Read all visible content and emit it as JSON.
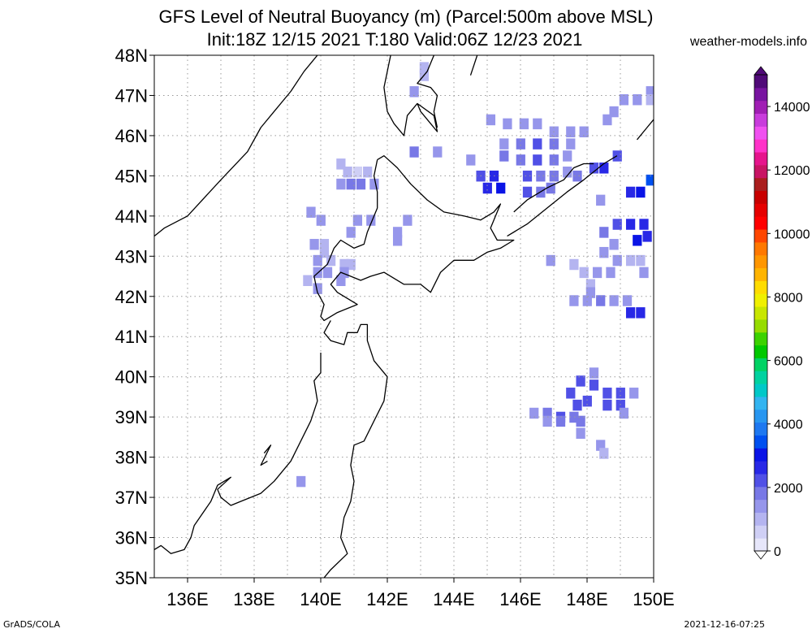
{
  "title_line1": "GFS Level of Neutral Buoyancy (m) (Parcel:500m above MSL)",
  "title_line2": "Init:18Z 12/15 2021 T:180 Valid:06Z 12/23 2021",
  "site": "weather-models.info",
  "footer_left": "GrADS/COLA",
  "footer_right": "2021-12-16-07:25",
  "map": {
    "lon_range": [
      135,
      150
    ],
    "lat_range": [
      35,
      48
    ],
    "lon_ticks": [
      "136E",
      "138E",
      "140E",
      "142E",
      "144E",
      "146E",
      "148E",
      "150E"
    ],
    "lat_ticks": [
      "35N",
      "36N",
      "37N",
      "38N",
      "39N",
      "40N",
      "41N",
      "42N",
      "43N",
      "44N",
      "45N",
      "46N",
      "47N",
      "48N"
    ],
    "grid": "dotted"
  },
  "colorbar": {
    "labels": [
      "0",
      "2000",
      "4000",
      "6000",
      "8000",
      "10000",
      "12000",
      "14000"
    ],
    "colors": [
      "#e6e6fa",
      "#cfcff5",
      "#b4b4f0",
      "#9696eb",
      "#7878e6",
      "#5050e6",
      "#2828e6",
      "#0a14e6",
      "#0050f0",
      "#1e78f0",
      "#2896f0",
      "#32b4f0",
      "#00c8c8",
      "#00d2a0",
      "#00d264",
      "#00c800",
      "#3cd200",
      "#96dc00",
      "#c8e600",
      "#f0f000",
      "#ffdc00",
      "#ffb400",
      "#ff9600",
      "#ff7800",
      "#ff4600",
      "#ff0000",
      "#e60000",
      "#c80000",
      "#aa1e1e",
      "#c81464",
      "#e6148c",
      "#ff32c8",
      "#f050f0",
      "#c83cdc",
      "#a01eb4",
      "#7814a0",
      "#500a78"
    ]
  },
  "lnb_cells": [
    {
      "lon": 143.1,
      "lat": 47.7,
      "v": 1200
    },
    {
      "lon": 143.1,
      "lat": 47.5,
      "v": 1200
    },
    {
      "lon": 142.8,
      "lat": 47.1,
      "v": 1300
    },
    {
      "lon": 142.8,
      "lat": 45.6,
      "v": 1700
    },
    {
      "lon": 140.6,
      "lat": 45.3,
      "v": 1200
    },
    {
      "lon": 140.8,
      "lat": 45.1,
      "v": 900
    },
    {
      "lon": 141.1,
      "lat": 45.1,
      "v": 700
    },
    {
      "lon": 141.4,
      "lat": 45.1,
      "v": 900
    },
    {
      "lon": 140.6,
      "lat": 44.8,
      "v": 1500
    },
    {
      "lon": 140.9,
      "lat": 44.8,
      "v": 1800
    },
    {
      "lon": 141.2,
      "lat": 44.8,
      "v": 1700
    },
    {
      "lon": 141.6,
      "lat": 44.8,
      "v": 1600
    },
    {
      "lon": 139.7,
      "lat": 44.1,
      "v": 1300
    },
    {
      "lon": 140.0,
      "lat": 43.9,
      "v": 1300
    },
    {
      "lon": 141.1,
      "lat": 43.9,
      "v": 1500
    },
    {
      "lon": 141.5,
      "lat": 43.9,
      "v": 1300
    },
    {
      "lon": 142.6,
      "lat": 43.9,
      "v": 1400
    },
    {
      "lon": 140.9,
      "lat": 43.6,
      "v": 1400
    },
    {
      "lon": 142.3,
      "lat": 43.6,
      "v": 1300
    },
    {
      "lon": 142.3,
      "lat": 43.4,
      "v": 1300
    },
    {
      "lon": 139.8,
      "lat": 43.3,
      "v": 1300
    },
    {
      "lon": 140.1,
      "lat": 43.1,
      "v": 1200
    },
    {
      "lon": 140.1,
      "lat": 43.3,
      "v": 1000
    },
    {
      "lon": 139.9,
      "lat": 42.9,
      "v": 1500
    },
    {
      "lon": 140.3,
      "lat": 42.9,
      "v": 1100
    },
    {
      "lon": 140.7,
      "lat": 42.8,
      "v": 1200
    },
    {
      "lon": 140.9,
      "lat": 42.8,
      "v": 1100
    },
    {
      "lon": 139.9,
      "lat": 42.6,
      "v": 1500
    },
    {
      "lon": 140.2,
      "lat": 42.6,
      "v": 1300
    },
    {
      "lon": 140.7,
      "lat": 42.6,
      "v": 1400
    },
    {
      "lon": 139.6,
      "lat": 42.4,
      "v": 1200
    },
    {
      "lon": 139.9,
      "lat": 42.2,
      "v": 1300
    },
    {
      "lon": 140.6,
      "lat": 42.4,
      "v": 1300
    },
    {
      "lon": 143.5,
      "lat": 45.6,
      "v": 1600
    },
    {
      "lon": 144.5,
      "lat": 45.4,
      "v": 1500
    },
    {
      "lon": 145.1,
      "lat": 46.4,
      "v": 1500
    },
    {
      "lon": 145.6,
      "lat": 46.3,
      "v": 1400
    },
    {
      "lon": 146.1,
      "lat": 46.3,
      "v": 1300
    },
    {
      "lon": 146.5,
      "lat": 46.3,
      "v": 1300
    },
    {
      "lon": 147.0,
      "lat": 46.1,
      "v": 1300
    },
    {
      "lon": 147.5,
      "lat": 46.1,
      "v": 1300
    },
    {
      "lon": 147.9,
      "lat": 46.1,
      "v": 1400
    },
    {
      "lon": 145.5,
      "lat": 45.8,
      "v": 1600
    },
    {
      "lon": 146.0,
      "lat": 45.8,
      "v": 1800
    },
    {
      "lon": 146.5,
      "lat": 45.8,
      "v": 2100
    },
    {
      "lon": 147.0,
      "lat": 45.8,
      "v": 1700
    },
    {
      "lon": 147.5,
      "lat": 45.8,
      "v": 1600
    },
    {
      "lon": 145.5,
      "lat": 45.5,
      "v": 1700
    },
    {
      "lon": 146.0,
      "lat": 45.4,
      "v": 2000
    },
    {
      "lon": 146.5,
      "lat": 45.4,
      "v": 2200
    },
    {
      "lon": 147.0,
      "lat": 45.4,
      "v": 1900
    },
    {
      "lon": 147.4,
      "lat": 45.5,
      "v": 1600
    },
    {
      "lon": 144.8,
      "lat": 45.0,
      "v": 2400
    },
    {
      "lon": 145.2,
      "lat": 45.0,
      "v": 2600
    },
    {
      "lon": 145.4,
      "lat": 44.7,
      "v": 3000
    },
    {
      "lon": 145.0,
      "lat": 44.7,
      "v": 2800
    },
    {
      "lon": 146.2,
      "lat": 45.0,
      "v": 2200
    },
    {
      "lon": 146.6,
      "lat": 45.0,
      "v": 2000
    },
    {
      "lon": 147.0,
      "lat": 45.0,
      "v": 1800
    },
    {
      "lon": 147.4,
      "lat": 45.1,
      "v": 1500
    },
    {
      "lon": 146.2,
      "lat": 44.6,
      "v": 2300
    },
    {
      "lon": 146.6,
      "lat": 44.6,
      "v": 2000
    },
    {
      "lon": 146.9,
      "lat": 44.7,
      "v": 1700
    },
    {
      "lon": 147.7,
      "lat": 45.0,
      "v": 2000
    },
    {
      "lon": 148.2,
      "lat": 45.2,
      "v": 2300
    },
    {
      "lon": 148.5,
      "lat": 45.2,
      "v": 2500
    },
    {
      "lon": 148.9,
      "lat": 45.5,
      "v": 2200
    },
    {
      "lon": 148.6,
      "lat": 46.4,
      "v": 1400
    },
    {
      "lon": 148.8,
      "lat": 46.6,
      "v": 1400
    },
    {
      "lon": 149.1,
      "lat": 46.9,
      "v": 1300
    },
    {
      "lon": 149.5,
      "lat": 46.9,
      "v": 1300
    },
    {
      "lon": 149.9,
      "lat": 47.1,
      "v": 1300
    },
    {
      "lon": 149.9,
      "lat": 46.9,
      "v": 1200
    },
    {
      "lon": 148.4,
      "lat": 44.4,
      "v": 1600
    },
    {
      "lon": 149.3,
      "lat": 44.6,
      "v": 2800
    },
    {
      "lon": 149.6,
      "lat": 44.6,
      "v": 3000
    },
    {
      "lon": 149.9,
      "lat": 44.9,
      "v": 3300
    },
    {
      "lon": 148.5,
      "lat": 43.6,
      "v": 1700
    },
    {
      "lon": 148.9,
      "lat": 43.8,
      "v": 2300
    },
    {
      "lon": 149.3,
      "lat": 43.8,
      "v": 2600
    },
    {
      "lon": 149.7,
      "lat": 43.8,
      "v": 2800
    },
    {
      "lon": 149.5,
      "lat": 43.4,
      "v": 3000
    },
    {
      "lon": 149.8,
      "lat": 43.5,
      "v": 2800
    },
    {
      "lon": 148.8,
      "lat": 43.3,
      "v": 1500
    },
    {
      "lon": 148.5,
      "lat": 43.1,
      "v": 1500
    },
    {
      "lon": 148.9,
      "lat": 42.9,
      "v": 1300
    },
    {
      "lon": 149.3,
      "lat": 42.9,
      "v": 1200
    },
    {
      "lon": 149.6,
      "lat": 42.9,
      "v": 1200
    },
    {
      "lon": 147.6,
      "lat": 42.8,
      "v": 1000
    },
    {
      "lon": 147.9,
      "lat": 42.6,
      "v": 1100
    },
    {
      "lon": 148.3,
      "lat": 42.6,
      "v": 1300
    },
    {
      "lon": 148.7,
      "lat": 42.6,
      "v": 1400
    },
    {
      "lon": 149.7,
      "lat": 42.6,
      "v": 1300
    },
    {
      "lon": 146.9,
      "lat": 42.9,
      "v": 1600
    },
    {
      "lon": 148.1,
      "lat": 42.3,
      "v": 1200
    },
    {
      "lon": 148.1,
      "lat": 42.1,
      "v": 1300
    },
    {
      "lon": 147.6,
      "lat": 41.9,
      "v": 1500
    },
    {
      "lon": 148.0,
      "lat": 41.9,
      "v": 1600
    },
    {
      "lon": 148.4,
      "lat": 41.9,
      "v": 1700
    },
    {
      "lon": 148.8,
      "lat": 41.9,
      "v": 1600
    },
    {
      "lon": 149.2,
      "lat": 41.9,
      "v": 1500
    },
    {
      "lon": 149.3,
      "lat": 41.6,
      "v": 2700
    },
    {
      "lon": 149.6,
      "lat": 41.6,
      "v": 2700
    },
    {
      "lon": 148.2,
      "lat": 40.1,
      "v": 1400
    },
    {
      "lon": 147.8,
      "lat": 39.9,
      "v": 2300
    },
    {
      "lon": 148.2,
      "lat": 39.8,
      "v": 2200
    },
    {
      "lon": 148.6,
      "lat": 39.6,
      "v": 2400
    },
    {
      "lon": 149.0,
      "lat": 39.6,
      "v": 2200
    },
    {
      "lon": 149.4,
      "lat": 39.6,
      "v": 1500
    },
    {
      "lon": 147.5,
      "lat": 39.6,
      "v": 2400
    },
    {
      "lon": 147.7,
      "lat": 39.3,
      "v": 2100
    },
    {
      "lon": 148.0,
      "lat": 39.4,
      "v": 2100
    },
    {
      "lon": 148.6,
      "lat": 39.3,
      "v": 2300
    },
    {
      "lon": 149.0,
      "lat": 39.3,
      "v": 2300
    },
    {
      "lon": 146.4,
      "lat": 39.1,
      "v": 1600
    },
    {
      "lon": 146.8,
      "lat": 39.1,
      "v": 1900
    },
    {
      "lon": 147.2,
      "lat": 39.0,
      "v": 2200
    },
    {
      "lon": 147.6,
      "lat": 39.0,
      "v": 2000
    },
    {
      "lon": 146.8,
      "lat": 38.9,
      "v": 1600
    },
    {
      "lon": 147.2,
      "lat": 38.9,
      "v": 1700
    },
    {
      "lon": 147.8,
      "lat": 38.9,
      "v": 1800
    },
    {
      "lon": 147.8,
      "lat": 38.6,
      "v": 1400
    },
    {
      "lon": 149.1,
      "lat": 39.1,
      "v": 1600
    },
    {
      "lon": 148.4,
      "lat": 38.3,
      "v": 1300
    },
    {
      "lon": 148.5,
      "lat": 38.1,
      "v": 1200
    },
    {
      "lon": 139.4,
      "lat": 37.4,
      "v": 1300
    }
  ],
  "coast": [
    [
      [
        135.0,
        43.5
      ],
      [
        135.3,
        43.7
      ],
      [
        136.0,
        44.0
      ],
      [
        137.0,
        44.9
      ],
      [
        137.8,
        45.6
      ],
      [
        138.2,
        46.2
      ],
      [
        138.6,
        46.6
      ],
      [
        139.1,
        47.1
      ],
      [
        139.5,
        47.6
      ],
      [
        139.9,
        48.0
      ]
    ],
    [
      [
        142.1,
        48.0
      ],
      [
        141.9,
        47.2
      ],
      [
        142.0,
        46.6
      ],
      [
        142.2,
        46.3
      ],
      [
        142.5,
        46.0
      ],
      [
        142.6,
        46.5
      ],
      [
        142.9,
        46.8
      ],
      [
        143.4,
        46.5
      ],
      [
        143.5,
        46.1
      ],
      [
        143.3,
        46.3
      ],
      [
        143.0,
        46.6
      ],
      [
        142.9,
        46.8
      ]
    ],
    [
      [
        143.4,
        48.0
      ],
      [
        143.2,
        47.6
      ],
      [
        142.9,
        47.3
      ],
      [
        143.3,
        47.2
      ],
      [
        143.5,
        47.0
      ],
      [
        143.4,
        46.6
      ],
      [
        143.5,
        46.2
      ]
    ],
    [
      [
        144.7,
        48.0
      ],
      [
        144.5,
        47.5
      ]
    ],
    [
      [
        141.7,
        45.4
      ],
      [
        141.9,
        45.5
      ],
      [
        142.3,
        45.2
      ],
      [
        142.7,
        44.8
      ],
      [
        143.2,
        44.4
      ],
      [
        143.7,
        44.1
      ],
      [
        144.3,
        44.0
      ],
      [
        144.8,
        43.9
      ],
      [
        145.2,
        44.1
      ],
      [
        145.4,
        44.3
      ],
      [
        145.1,
        43.7
      ],
      [
        145.3,
        43.4
      ],
      [
        145.8,
        43.4
      ],
      [
        145.4,
        43.2
      ],
      [
        145.0,
        43.1
      ],
      [
        144.6,
        42.9
      ],
      [
        144.0,
        42.9
      ],
      [
        143.6,
        42.6
      ],
      [
        143.3,
        42.1
      ],
      [
        143.0,
        42.3
      ],
      [
        142.5,
        42.3
      ],
      [
        141.9,
        42.6
      ],
      [
        141.5,
        42.5
      ],
      [
        141.2,
        42.4
      ],
      [
        140.9,
        42.5
      ],
      [
        140.6,
        42.6
      ],
      [
        140.3,
        42.3
      ],
      [
        140.5,
        42.1
      ],
      [
        141.1,
        41.8
      ],
      [
        140.8,
        41.7
      ],
      [
        140.5,
        41.6
      ],
      [
        140.1,
        41.4
      ],
      [
        140.0,
        41.5
      ],
      [
        140.1,
        41.8
      ],
      [
        139.9,
        42.1
      ],
      [
        139.8,
        42.5
      ],
      [
        140.2,
        42.8
      ],
      [
        140.4,
        43.2
      ],
      [
        140.6,
        43.4
      ],
      [
        141.0,
        43.2
      ],
      [
        141.3,
        43.3
      ],
      [
        141.4,
        43.6
      ],
      [
        141.7,
        44.2
      ],
      [
        141.7,
        44.6
      ],
      [
        141.6,
        45.0
      ],
      [
        141.7,
        45.4
      ]
    ],
    [
      [
        140.3,
        41.4
      ],
      [
        140.1,
        41.1
      ],
      [
        140.3,
        40.9
      ],
      [
        140.7,
        40.8
      ],
      [
        140.8,
        41.1
      ],
      [
        141.1,
        41.1
      ],
      [
        141.2,
        41.3
      ],
      [
        141.4,
        41.3
      ],
      [
        141.4,
        40.9
      ],
      [
        141.6,
        40.4
      ],
      [
        142.0,
        40.0
      ],
      [
        141.9,
        39.4
      ],
      [
        141.6,
        38.9
      ],
      [
        141.3,
        38.4
      ],
      [
        141.0,
        38.3
      ],
      [
        140.9,
        37.8
      ],
      [
        141.0,
        37.4
      ],
      [
        140.9,
        36.9
      ],
      [
        140.7,
        36.5
      ],
      [
        140.6,
        36.0
      ],
      [
        140.8,
        35.6
      ],
      [
        140.3,
        35.2
      ],
      [
        140.1,
        35.0
      ]
    ],
    [
      [
        140.0,
        40.6
      ],
      [
        140.0,
        40.1
      ],
      [
        139.8,
        39.9
      ],
      [
        139.9,
        39.4
      ],
      [
        139.7,
        38.9
      ],
      [
        139.4,
        38.4
      ],
      [
        139.1,
        37.9
      ],
      [
        138.6,
        37.4
      ],
      [
        138.2,
        37.1
      ],
      [
        137.6,
        36.9
      ],
      [
        137.3,
        36.8
      ],
      [
        137.0,
        37.0
      ],
      [
        136.9,
        37.2
      ],
      [
        137.3,
        37.5
      ],
      [
        136.9,
        37.3
      ],
      [
        136.7,
        36.9
      ],
      [
        136.2,
        36.3
      ],
      [
        136.1,
        36.0
      ],
      [
        135.9,
        35.7
      ],
      [
        135.5,
        35.6
      ],
      [
        135.2,
        35.8
      ],
      [
        135.0,
        35.7
      ]
    ],
    [
      [
        138.3,
        38.1
      ],
      [
        138.5,
        38.3
      ],
      [
        138.2,
        37.8
      ],
      [
        138.4,
        37.9
      ]
    ],
    [
      [
        145.6,
        43.5
      ],
      [
        146.2,
        43.8
      ],
      [
        146.8,
        44.2
      ],
      [
        147.4,
        44.6
      ],
      [
        147.9,
        44.9
      ],
      [
        148.5,
        45.3
      ],
      [
        148.9,
        45.5
      ]
    ],
    [
      [
        145.8,
        44.1
      ],
      [
        146.2,
        44.4
      ],
      [
        146.8,
        44.7
      ],
      [
        147.3,
        44.9
      ],
      [
        147.6,
        45.2
      ],
      [
        147.9,
        45.3
      ],
      [
        148.2,
        45.3
      ]
    ],
    [
      [
        149.5,
        45.9
      ],
      [
        149.8,
        46.2
      ],
      [
        150.0,
        46.4
      ]
    ]
  ]
}
